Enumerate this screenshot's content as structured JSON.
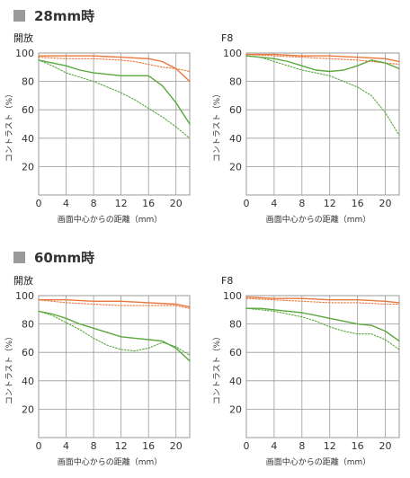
{
  "sections": [
    {
      "heading": "28mm時"
    },
    {
      "heading": "60mm時"
    }
  ],
  "common": {
    "ylabel": "コントラスト（%）",
    "xlabel": "画面中心からの距離（mm）",
    "colors": {
      "grid": "#9a9a9a",
      "wide": "#e8773d",
      "narrow": "#5aa83c"
    }
  },
  "chart_data": [
    {
      "type": "line",
      "title": "開放",
      "ylabel": "コントラスト（%）",
      "xlabel": "画面中心からの距離（mm）",
      "xlim": [
        0,
        22
      ],
      "ylim": [
        0,
        100
      ],
      "xticks": [
        0,
        4,
        8,
        12,
        16,
        20
      ],
      "yticks": [
        20,
        40,
        60,
        80,
        100
      ],
      "grid": true,
      "series": [
        {
          "color": "#e8773d",
          "dash": "solid",
          "x": [
            0,
            4,
            8,
            12,
            16,
            18,
            20,
            22
          ],
          "y": [
            98,
            98,
            98,
            97,
            96,
            94,
            89,
            80
          ]
        },
        {
          "color": "#e8773d",
          "dash": "dotted",
          "x": [
            0,
            4,
            8,
            12,
            14,
            16,
            18,
            20,
            22
          ],
          "y": [
            97,
            96,
            96,
            95,
            94,
            92,
            90,
            89,
            87
          ]
        },
        {
          "color": "#5aa83c",
          "dash": "solid",
          "x": [
            0,
            2,
            4,
            6,
            8,
            10,
            12,
            14,
            16,
            18,
            20,
            22
          ],
          "y": [
            95,
            93,
            91,
            88,
            86,
            85,
            84,
            84,
            84,
            77,
            65,
            50
          ]
        },
        {
          "color": "#5aa83c",
          "dash": "dotted",
          "x": [
            0,
            2,
            4,
            6,
            8,
            10,
            12,
            14,
            16,
            18,
            20,
            22
          ],
          "y": [
            95,
            91,
            86,
            83,
            80,
            76,
            72,
            67,
            61,
            55,
            48,
            40
          ]
        }
      ]
    },
    {
      "type": "line",
      "title": "F8",
      "ylabel": "コントラスト（%）",
      "xlabel": "画面中心からの距離（mm）",
      "xlim": [
        0,
        22
      ],
      "ylim": [
        0,
        100
      ],
      "xticks": [
        0,
        4,
        8,
        12,
        16,
        20
      ],
      "yticks": [
        20,
        40,
        60,
        80,
        100
      ],
      "grid": true,
      "series": [
        {
          "color": "#e8773d",
          "dash": "solid",
          "x": [
            0,
            4,
            8,
            12,
            16,
            20,
            22
          ],
          "y": [
            99,
            99,
            98,
            98,
            97,
            96,
            94
          ]
        },
        {
          "color": "#e8773d",
          "dash": "dotted",
          "x": [
            0,
            4,
            8,
            12,
            16,
            20,
            22
          ],
          "y": [
            99,
            98,
            97,
            96,
            95,
            93,
            92
          ]
        },
        {
          "color": "#5aa83c",
          "dash": "solid",
          "x": [
            0,
            2,
            4,
            6,
            8,
            10,
            12,
            14,
            16,
            18,
            20,
            22
          ],
          "y": [
            98,
            97,
            96,
            94,
            91,
            88,
            87,
            88,
            91,
            95,
            93,
            89
          ]
        },
        {
          "color": "#5aa83c",
          "dash": "dotted",
          "x": [
            0,
            2,
            4,
            6,
            8,
            10,
            12,
            14,
            16,
            18,
            20,
            22
          ],
          "y": [
            98,
            97,
            94,
            91,
            88,
            86,
            84,
            80,
            76,
            70,
            58,
            42
          ]
        }
      ]
    },
    {
      "type": "line",
      "title": "開放",
      "ylabel": "コントラスト（%）",
      "xlabel": "画面中心からの距離（mm）",
      "xlim": [
        0,
        22
      ],
      "ylim": [
        0,
        100
      ],
      "xticks": [
        0,
        4,
        8,
        12,
        16,
        20
      ],
      "yticks": [
        20,
        40,
        60,
        80,
        100
      ],
      "grid": true,
      "series": [
        {
          "color": "#e8773d",
          "dash": "solid",
          "x": [
            0,
            4,
            8,
            12,
            16,
            20,
            22
          ],
          "y": [
            97,
            97,
            96,
            96,
            95,
            94,
            92
          ]
        },
        {
          "color": "#e8773d",
          "dash": "dotted",
          "x": [
            0,
            4,
            8,
            12,
            16,
            20,
            22
          ],
          "y": [
            97,
            95,
            94,
            93,
            93,
            93,
            91
          ]
        },
        {
          "color": "#5aa83c",
          "dash": "solid",
          "x": [
            0,
            2,
            4,
            6,
            8,
            10,
            12,
            14,
            16,
            18,
            20,
            22
          ],
          "y": [
            89,
            87,
            84,
            80,
            77,
            74,
            71,
            70,
            69,
            68,
            63,
            54
          ]
        },
        {
          "color": "#5aa83c",
          "dash": "dotted",
          "x": [
            0,
            2,
            4,
            6,
            8,
            10,
            12,
            14,
            16,
            18,
            20,
            22
          ],
          "y": [
            89,
            86,
            81,
            76,
            70,
            65,
            62,
            61,
            63,
            67,
            64,
            58
          ]
        }
      ]
    },
    {
      "type": "line",
      "title": "F8",
      "ylabel": "コントラスト（%）",
      "xlabel": "画面中心からの距離（mm）",
      "xlim": [
        0,
        22
      ],
      "ylim": [
        0,
        100
      ],
      "xticks": [
        0,
        4,
        8,
        12,
        16,
        20
      ],
      "yticks": [
        20,
        40,
        60,
        80,
        100
      ],
      "grid": true,
      "series": [
        {
          "color": "#e8773d",
          "dash": "solid",
          "x": [
            0,
            4,
            8,
            12,
            16,
            20,
            22
          ],
          "y": [
            99,
            98,
            98,
            97,
            97,
            96,
            95
          ]
        },
        {
          "color": "#e8773d",
          "dash": "dotted",
          "x": [
            0,
            4,
            8,
            12,
            16,
            20,
            22
          ],
          "y": [
            98,
            97,
            96,
            95,
            95,
            94,
            94
          ]
        },
        {
          "color": "#5aa83c",
          "dash": "solid",
          "x": [
            0,
            2,
            4,
            6,
            8,
            10,
            12,
            14,
            16,
            18,
            20,
            22
          ],
          "y": [
            91,
            91,
            90,
            89,
            88,
            86,
            84,
            82,
            80,
            79,
            75,
            68
          ]
        },
        {
          "color": "#5aa83c",
          "dash": "dotted",
          "x": [
            0,
            2,
            4,
            6,
            8,
            10,
            12,
            14,
            16,
            18,
            20,
            22
          ],
          "y": [
            91,
            90,
            89,
            87,
            85,
            82,
            78,
            75,
            73,
            73,
            69,
            62
          ]
        }
      ]
    }
  ]
}
